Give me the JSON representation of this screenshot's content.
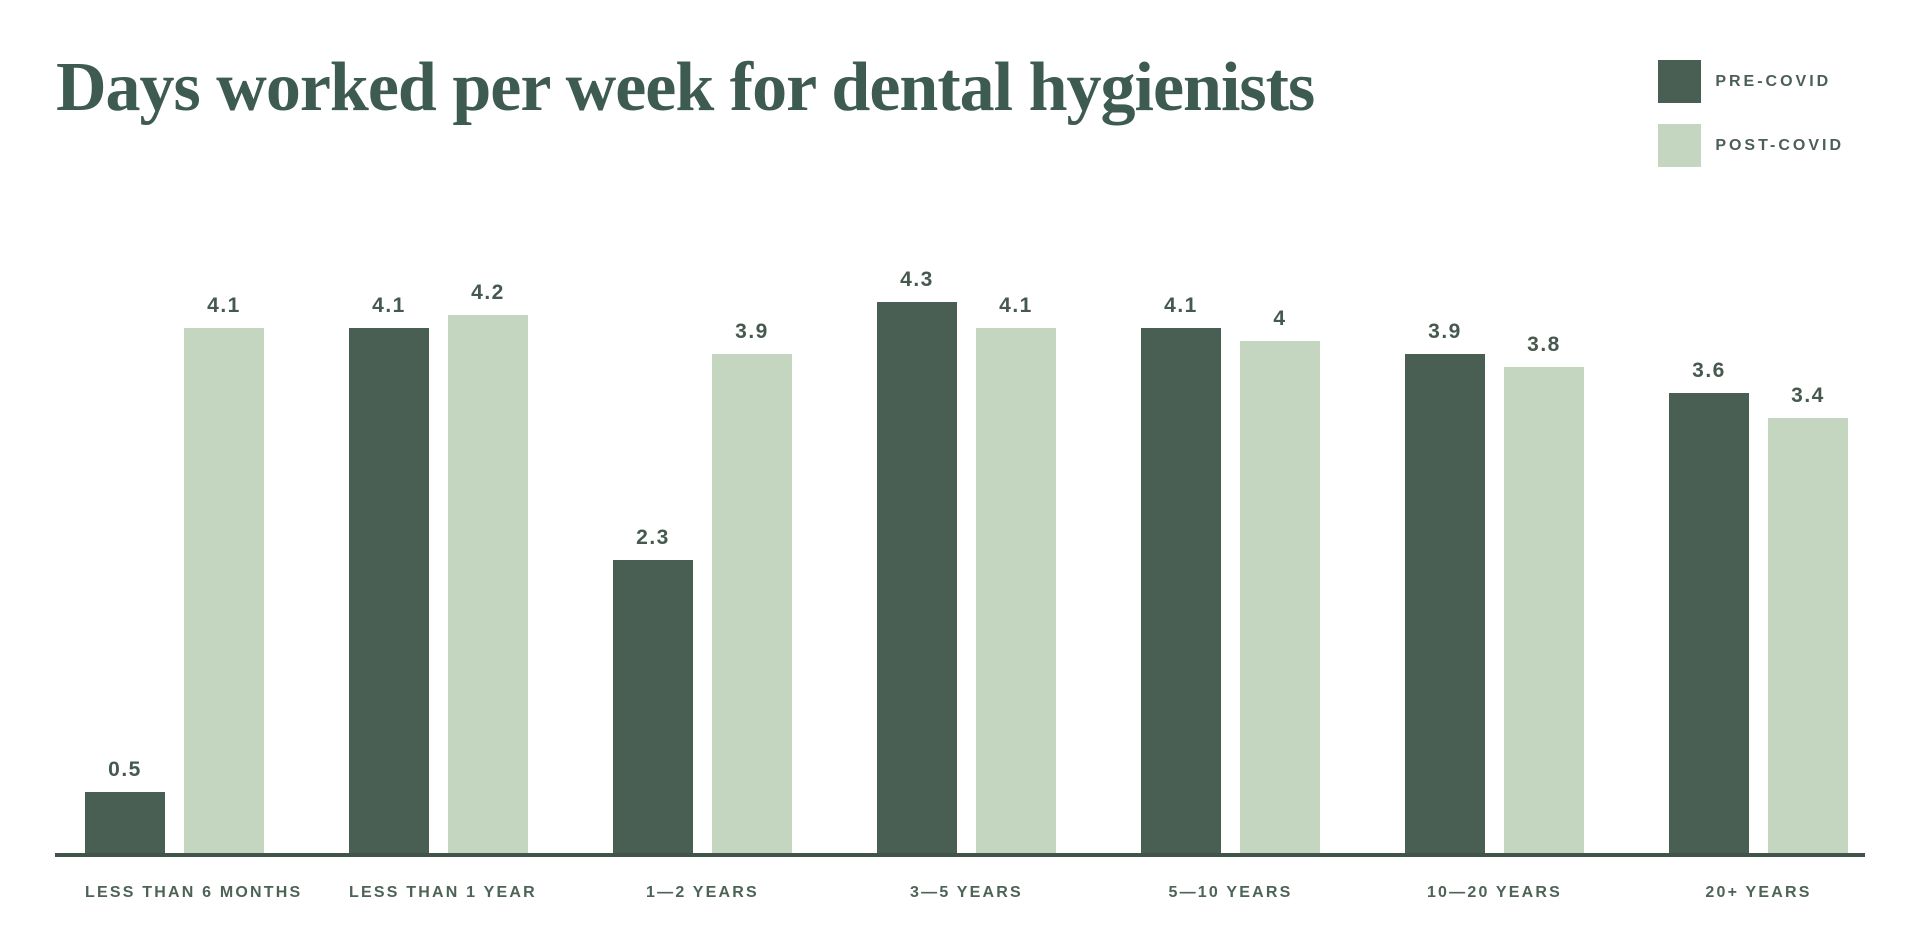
{
  "title": "Days worked per week for dental hygienists",
  "colors": {
    "title": "#3e5b51",
    "axis_line": "#40544a",
    "value_label": "#46594f",
    "category_label": "#4c6356",
    "background": "#ffffff"
  },
  "chart_data": {
    "type": "bar",
    "title": "Days worked per week for dental hygienists",
    "categories": [
      "LESS THAN 6 MONTHS",
      "LESS THAN 1 YEAR",
      "1—2 YEARS",
      "3—5 YEARS",
      "5—10 YEARS",
      "10—20 YEARS",
      "20+ YEARS"
    ],
    "series": [
      {
        "key": "pre-covid",
        "name": "PRE-COVID",
        "color": "#4a5f54",
        "values": [
          0.5,
          4.1,
          2.3,
          4.3,
          4.1,
          3.9,
          3.6
        ]
      },
      {
        "key": "post-covid",
        "name": "POST-COVID",
        "color": "#c4d6c0",
        "values": [
          4.1,
          4.2,
          3.9,
          4.1,
          4.0,
          3.8,
          3.4
        ]
      }
    ],
    "xlabel": "",
    "ylabel": "",
    "ylim": [
      0,
      4.6
    ],
    "grid": false,
    "value_labels_shown": true,
    "legend_position": "top-right"
  }
}
